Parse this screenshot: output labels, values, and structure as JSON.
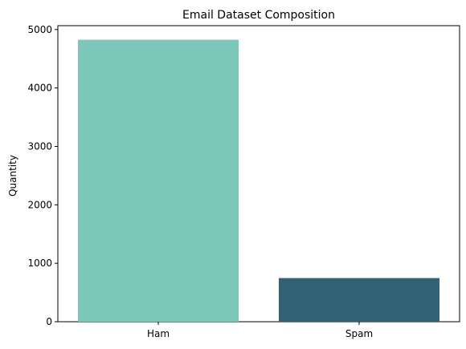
{
  "chart_data": {
    "type": "bar",
    "title": "Email Dataset Composition",
    "xlabel": "",
    "ylabel": "Quantity",
    "categories": [
      "Ham",
      "Spam"
    ],
    "values": [
      4825,
      747
    ],
    "colors": [
      "#7bc7ba",
      "#316175"
    ],
    "ylim": [
      0,
      5066
    ],
    "yticks": [
      0,
      1000,
      2000,
      3000,
      4000,
      5000
    ],
    "grid": false,
    "legend": "none"
  }
}
